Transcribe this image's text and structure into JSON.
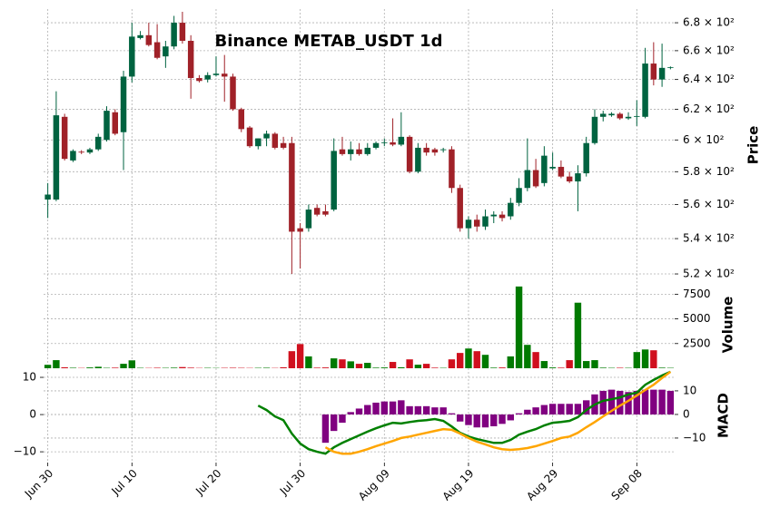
{
  "chart_data": {
    "type": "candlestick",
    "title": "Binance METAB_USDT 1d",
    "x": [
      "Jun 30",
      null,
      null,
      null,
      null,
      null,
      null,
      null,
      null,
      null,
      "Jul 10",
      null,
      null,
      null,
      null,
      null,
      null,
      null,
      null,
      null,
      "Jul 20",
      null,
      null,
      null,
      null,
      null,
      null,
      null,
      null,
      null,
      "Jul 30",
      null,
      null,
      null,
      null,
      null,
      null,
      null,
      null,
      null,
      "Aug 09",
      null,
      null,
      null,
      null,
      null,
      null,
      null,
      null,
      null,
      "Aug 19",
      null,
      null,
      null,
      null,
      null,
      null,
      null,
      null,
      null,
      "Aug 29",
      null,
      null,
      null,
      null,
      null,
      null,
      null,
      null,
      null,
      "Sep 08",
      null,
      null,
      null,
      null
    ],
    "open": [
      563,
      563,
      615,
      587,
      592.5,
      592,
      594,
      600,
      618,
      605,
      642,
      669,
      671,
      666,
      656,
      663,
      680,
      667,
      641,
      640,
      643,
      644,
      642,
      620,
      608,
      596,
      601,
      604,
      598,
      598,
      546,
      546,
      558,
      556,
      557,
      594,
      591,
      594,
      591,
      595,
      598,
      598.5,
      597,
      602,
      580,
      595,
      594,
      593.5,
      594,
      570,
      546,
      551,
      547,
      553,
      554,
      553,
      561,
      570,
      581,
      573,
      582,
      583,
      577,
      574,
      579,
      598,
      615,
      616,
      617,
      614,
      615,
      615,
      651,
      640,
      648
    ],
    "high": [
      573,
      632,
      617,
      594,
      593.5,
      595,
      604,
      622,
      620,
      646,
      680,
      674,
      680,
      679,
      667,
      685,
      688,
      671,
      643,
      645,
      656,
      657,
      644,
      621,
      609,
      601,
      606,
      605,
      602,
      602,
      549,
      560,
      560,
      560,
      601,
      602,
      599,
      598,
      598,
      599,
      601,
      614,
      618,
      603,
      598,
      598,
      595,
      595,
      596,
      572,
      553,
      554,
      557,
      556,
      556,
      564,
      576,
      601,
      588,
      596,
      592,
      587,
      580,
      584,
      602,
      620,
      619,
      618,
      618,
      618,
      626,
      662,
      666,
      665,
      649
    ],
    "low": [
      552,
      562,
      587,
      586,
      591,
      591,
      593,
      599,
      603,
      581,
      638,
      668,
      663,
      654,
      648,
      661,
      665,
      627,
      638,
      638,
      642,
      625,
      619,
      605,
      595,
      594,
      596,
      594,
      594,
      520,
      523,
      544,
      553,
      553,
      556,
      590,
      587,
      590,
      590,
      594,
      596,
      596,
      596,
      579,
      579,
      590,
      590,
      592,
      567,
      544,
      540,
      544,
      545,
      549,
      550,
      551,
      559,
      568,
      570,
      571,
      581,
      576,
      573,
      556,
      577,
      597,
      612,
      615,
      613,
      613,
      609,
      614,
      636,
      635,
      647
    ],
    "close": [
      566,
      616,
      588,
      593,
      592,
      594,
      602,
      619,
      604,
      642,
      670,
      671,
      664,
      655,
      663,
      680,
      667,
      641,
      639,
      643,
      644,
      642,
      620,
      607,
      596,
      601,
      604,
      595,
      595,
      544,
      544,
      557,
      554,
      554,
      593,
      591,
      594,
      591,
      595,
      598,
      598.5,
      597,
      602,
      580,
      595,
      592,
      592,
      594,
      570,
      546,
      551,
      547,
      553,
      554,
      552,
      561,
      570,
      581,
      571,
      590,
      583,
      577,
      574,
      579,
      598,
      615,
      617,
      617,
      614,
      615,
      615.5,
      651,
      640,
      648,
      648.5
    ],
    "up_color": "#006340",
    "down_color": "#a02128",
    "log_y": true,
    "ylim": [
      515,
      690
    ],
    "yticks": [
      {
        "value": 520,
        "label": "5.2 × 10²"
      },
      {
        "value": 540,
        "label": "5.4 × 10²"
      },
      {
        "value": 560,
        "label": "5.6 × 10²"
      },
      {
        "value": 580,
        "label": "5.8 × 10²"
      },
      {
        "value": 600,
        "label": "6 × 10²"
      },
      {
        "value": 620,
        "label": "6.2 × 10²"
      },
      {
        "value": 640,
        "label": "6.4 × 10²"
      },
      {
        "value": 660,
        "label": "6.6 × 10²"
      },
      {
        "value": 680,
        "label": "6.8 × 10²"
      }
    ],
    "ylabel": "Price",
    "grid": true,
    "volume": {
      "values": [
        350,
        820,
        100,
        50,
        30,
        80,
        150,
        40,
        60,
        450,
        800,
        40,
        30,
        50,
        40,
        60,
        120,
        60,
        30,
        40,
        30,
        40,
        50,
        40,
        30,
        40,
        50,
        30,
        100,
        1730,
        2450,
        1200,
        60,
        80,
        1000,
        900,
        700,
        450,
        550,
        60,
        80,
        640,
        100,
        900,
        360,
        450,
        60,
        40,
        900,
        1550,
        2000,
        1730,
        1360,
        60,
        80,
        1200,
        8280,
        2370,
        1640,
        730,
        80,
        60,
        820,
        6640,
        730,
        820,
        60,
        40,
        50,
        40,
        1640,
        1900,
        1820,
        60,
        40
      ],
      "up_color": "#007a00",
      "down_color": "#d0101e",
      "ylim": [
        0,
        8360
      ],
      "yticks": [
        2500,
        5000,
        7500
      ],
      "ylabel": "Volume"
    },
    "macd": {
      "ylabel": "MACD",
      "ylim": [
        -12.9,
        12.2
      ],
      "yticks": [
        {
          "value": -10,
          "label": "−10"
        },
        0,
        10
      ],
      "y2lim": [
        -20.4,
        19.2
      ],
      "y2ticks": [
        {
          "value": -10,
          "label": "−10"
        },
        0,
        10
      ],
      "lines": [
        {
          "color": "#008000",
          "values": [
            null,
            null,
            null,
            null,
            null,
            null,
            null,
            null,
            null,
            null,
            null,
            null,
            null,
            null,
            null,
            null,
            null,
            null,
            null,
            null,
            null,
            null,
            null,
            null,
            null,
            2.4,
            1.2,
            -0.5,
            -1.5,
            -5.1,
            -7.8,
            -9.3,
            -10,
            -10.5,
            -8.8,
            -7.6,
            -6.6,
            -5.6,
            -4.6,
            -3.7,
            -2.9,
            -2.2,
            -2.4,
            -2,
            -1.7,
            -1.5,
            -1.2,
            -1.7,
            -3.2,
            -4.9,
            -5.9,
            -6.6,
            -7.1,
            -7.6,
            -7.6,
            -6.8,
            -5.4,
            -4.6,
            -3.9,
            -2.9,
            -2.2,
            -2,
            -1.7,
            -0.7,
            1.2,
            2.7,
            3.7,
            4.1,
            4.6,
            5.4,
            5.9,
            8,
            9.3,
            10.5,
            11.5
          ]
        },
        {
          "color": "#ffa500",
          "values": [
            null,
            null,
            null,
            null,
            null,
            null,
            null,
            null,
            null,
            null,
            null,
            null,
            null,
            null,
            null,
            null,
            null,
            null,
            null,
            null,
            null,
            null,
            null,
            null,
            null,
            null,
            null,
            null,
            null,
            null,
            null,
            null,
            null,
            -8.8,
            -10,
            -10.5,
            -10.5,
            -10,
            -9.3,
            -8.5,
            -7.8,
            -7.1,
            -6.3,
            -5.9,
            -5.4,
            -4.9,
            -4.4,
            -3.9,
            -4.1,
            -5.1,
            -6.3,
            -7.3,
            -8,
            -8.8,
            -9.3,
            -9.5,
            -9.3,
            -9,
            -8.5,
            -7.8,
            -7.1,
            -6.3,
            -5.9,
            -4.9,
            -3.4,
            -2,
            -0.5,
            1,
            2.4,
            3.7,
            5.1,
            6.6,
            8,
            9.8,
            11.5
          ]
        }
      ],
      "histogram": {
        "color": "#800080",
        "axis": "y2",
        "values": [
          null,
          null,
          null,
          null,
          null,
          null,
          null,
          null,
          null,
          null,
          null,
          null,
          null,
          null,
          null,
          null,
          null,
          null,
          null,
          null,
          null,
          null,
          null,
          null,
          null,
          null,
          null,
          null,
          null,
          null,
          null,
          null,
          null,
          -12,
          -7,
          -3.5,
          1,
          2.5,
          4,
          5,
          5.5,
          5.5,
          6,
          3.5,
          3.5,
          3.5,
          3,
          3,
          0.5,
          -3,
          -4.5,
          -5.5,
          -5.5,
          -5,
          -4,
          -2.5,
          0.5,
          2,
          3,
          4,
          4.5,
          4.5,
          4.5,
          4.5,
          6,
          8.5,
          10,
          10.5,
          10,
          9.5,
          10,
          10.5,
          10.5,
          10.5,
          10
        ]
      }
    }
  }
}
